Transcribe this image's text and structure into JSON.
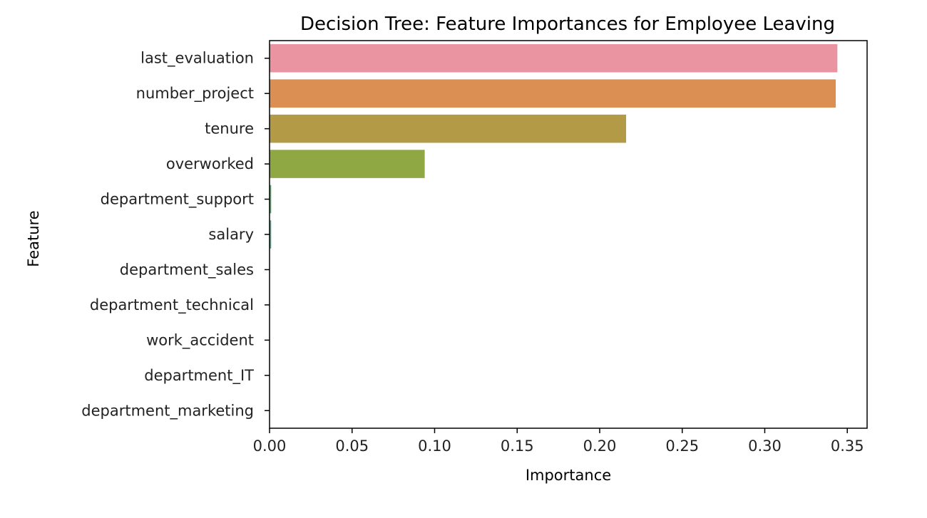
{
  "chart_data": {
    "type": "bar",
    "orientation": "horizontal",
    "title": "Decision Tree: Feature Importances for Employee Leaving",
    "xlabel": "Importance",
    "ylabel": "Feature",
    "categories": [
      "last_evaluation",
      "number_project",
      "tenure",
      "overworked",
      "department_support",
      "salary",
      "department_sales",
      "department_technical",
      "work_accident",
      "department_IT",
      "department_marketing"
    ],
    "values": [
      0.344,
      0.343,
      0.216,
      0.094,
      0.001,
      0.001,
      0.0,
      0.0,
      0.0,
      0.0,
      0.0
    ],
    "colors": [
      "#eb94a1",
      "#dc8f52",
      "#b29a46",
      "#8fa844",
      "#52b064",
      "#50ae98",
      "#52acb1",
      "#57a7d0",
      "#a797e6",
      "#dd86e4",
      "#ee8ec1"
    ],
    "xlim": [
      0.0,
      0.362
    ],
    "xticks": [
      "0.00",
      "0.05",
      "0.10",
      "0.15",
      "0.20",
      "0.25",
      "0.30",
      "0.35"
    ],
    "grid": false,
    "legend": "none"
  }
}
